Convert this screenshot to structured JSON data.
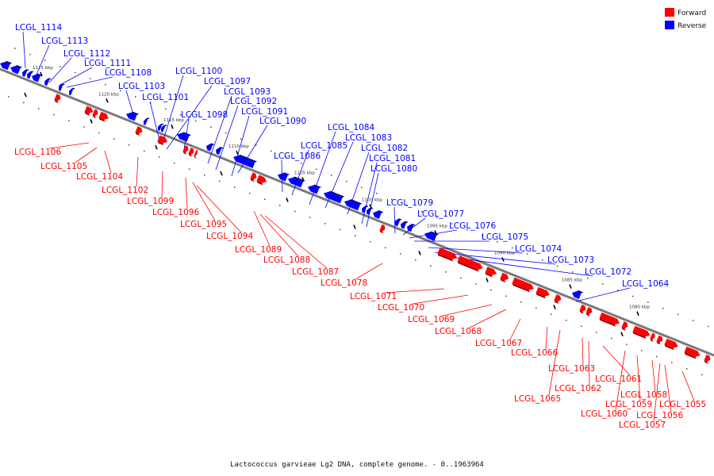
{
  "caption": "Lactococcus garvieae Lg2 DNA, complete genome. - 0..1963964",
  "legend": [
    {
      "label": "Forward",
      "color": "#ff0000"
    },
    {
      "label": "Reverse",
      "color": "#0000ff"
    }
  ],
  "colors": {
    "forward": "#ff0000",
    "reverse": "#0000ff",
    "backbone": "#777777"
  },
  "scale_ticks": [
    "1125 kbp",
    "1120 kbp",
    "1115 kbp",
    "1110 kbp",
    "1105 kbp",
    "1100 kbp",
    "1095 kbp",
    "1090 kbp",
    "1085 kbp",
    "1080 kbp"
  ],
  "genes_reverse": [
    "LCGL_1114",
    "LCGL_1113",
    "LCGL_1112",
    "LCGL_1111",
    "LCGL_1108",
    "LCGL_1103",
    "LCGL_1101",
    "LCGL_1100",
    "LCGL_1097",
    "LCGL_1098",
    "LCGL_1093",
    "LCGL_1092",
    "LCGL_1091",
    "LCGL_1090",
    "LCGL_1086",
    "LCGL_1085",
    "LCGL_1084",
    "LCGL_1083",
    "LCGL_1082",
    "LCGL_1081",
    "LCGL_1080",
    "LCGL_1079",
    "LCGL_1077",
    "LCGL_1076",
    "LCGL_1075",
    "LCGL_1074",
    "LCGL_1073",
    "LCGL_1072",
    "LCGL_1064"
  ],
  "genes_forward": [
    "LCGL_1106",
    "LCGL_1105",
    "LCGL_1104",
    "LCGL_1102",
    "LCGL_1099",
    "LCGL_1096",
    "LCGL_1095",
    "LCGL_1094",
    "LCGL_1089",
    "LCGL_1088",
    "LCGL_1087",
    "LCGL_1078",
    "LCGL_1071",
    "LCGL_1070",
    "LCGL_1069",
    "LCGL_1068",
    "LCGL_1067",
    "LCGL_1066",
    "LCGL_1065",
    "LCGL_1063",
    "LCGL_1062",
    "LCGL_1061",
    "LCGL_1060",
    "LCGL_1059",
    "LCGL_1058",
    "LCGL_1057",
    "LCGL_1056",
    "LCGL_1055"
  ]
}
